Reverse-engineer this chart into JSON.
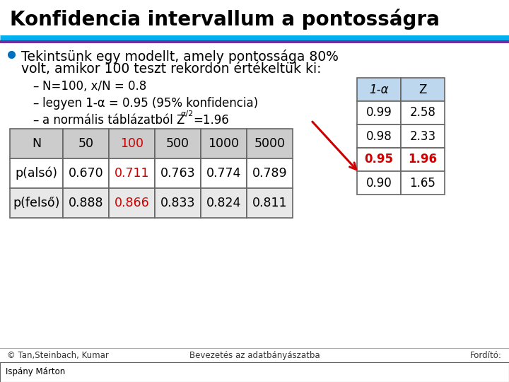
{
  "title": "Konfidencia intervallum a pontosságra",
  "title_fontsize": 20,
  "title_fontweight": "bold",
  "bg_color": "#FFFFFF",
  "line1_color": "#00B0F0",
  "line2_color": "#7030A0",
  "bullet_text_line1": "Tekintsünk egy modellt, amely pontossága 80%",
  "bullet_text_line2": "volt, amikor 100 teszt rekordon értékeltük ki:",
  "sub_bullet1": "N=100, x/N = 0.8",
  "sub_bullet2": "legyen 1-α = 0.95 (95% konfidencia)",
  "sub_bullet3_pre": "a normális táblázatból Z",
  "sub_bullet3_sub": "α/2",
  "sub_bullet3_post": "=1.96",
  "main_table_headers": [
    "N",
    "50",
    "100",
    "500",
    "1000",
    "5000"
  ],
  "main_table_rows": [
    [
      "p(alsó)",
      "0.670",
      "0.711",
      "0.763",
      "0.774",
      "0.789"
    ],
    [
      "p(felső)",
      "0.888",
      "0.866",
      "0.833",
      "0.824",
      "0.811"
    ]
  ],
  "main_table_highlight_col": 2,
  "main_table_highlight_color": "#CC0000",
  "main_table_header_bg": "#CCCCCC",
  "main_table_row1_bg": "#FFFFFF",
  "main_table_row2_bg": "#E8E8E8",
  "side_table_headers": [
    "1-α",
    "Z"
  ],
  "side_table_rows": [
    [
      "0.99",
      "2.58"
    ],
    [
      "0.98",
      "2.33"
    ],
    [
      "0.95",
      "1.96"
    ],
    [
      "0.90",
      "1.65"
    ]
  ],
  "side_table_highlight_row": 2,
  "side_table_highlight_color": "#CC0000",
  "side_table_header_bg": "#BDD7EE",
  "side_table_row_bg": "#FFFFFF",
  "arrow_color": "#CC0000",
  "footer_left": "© Tan,Steinbach, Kumar",
  "footer_center": "Bevezetés az adatbányászatba",
  "footer_right": "Fordító:",
  "footer_name": "Ispány Márton"
}
